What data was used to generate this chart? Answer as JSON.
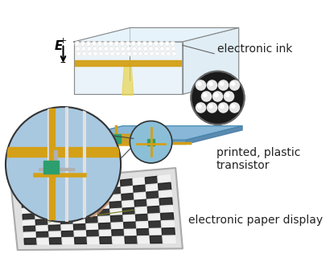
{
  "title": "",
  "background_color": "#ffffff",
  "label_electronic_ink": "electronic ink",
  "label_printed_transistor": "printed, plastic\ntransistor",
  "label_electronic_paper": "electronic paper display",
  "label_E_field": "E",
  "colors": {
    "glass_top": "#c8dff0",
    "glass_edge": "#a0b8cc",
    "ink_layer_top": "#e8e8e8",
    "ink_layer_white": "#f0f0f0",
    "gold_layer": "#d4a017",
    "gold_layer2": "#c8960a",
    "brown_layer": "#8B4513",
    "backplane_blue": "#7bafd4",
    "backplane_mid": "#5a9fc4",
    "transistor_green": "#2d9e6e",
    "wire_gold": "#d4a017",
    "circle_bg": "#1a1a1a",
    "circle_light": "#e0e0e0",
    "arrow_color": "#333333",
    "label_color": "#333333",
    "paper_display_border": "#c0c0c0",
    "checker_black": "#1a1a1a",
    "checker_white": "#f5f5f5",
    "hand_color": "#c8906a",
    "connection_line": "#808020"
  },
  "figsize": [
    4.15,
    3.36
  ],
  "dpi": 100
}
